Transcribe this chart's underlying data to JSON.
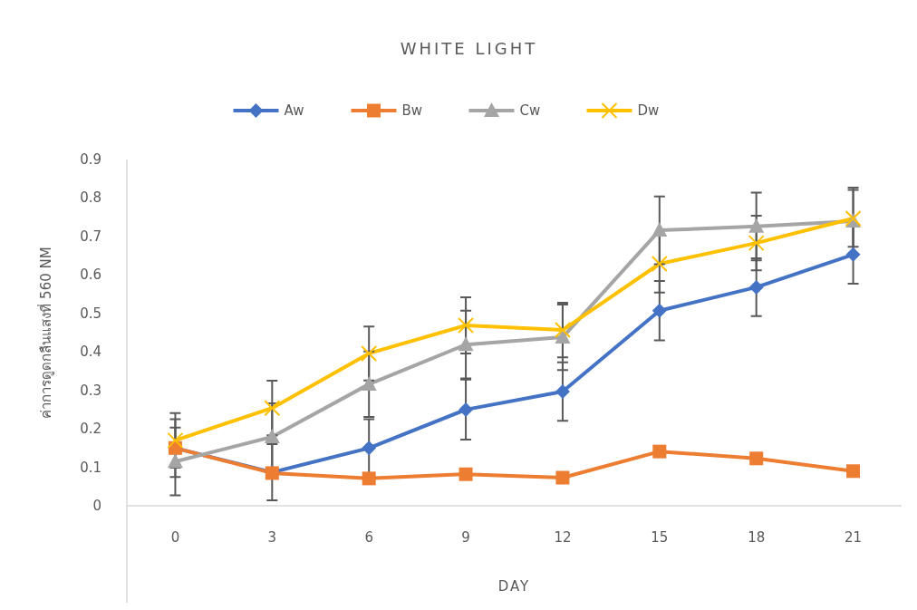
{
  "chart_data": {
    "type": "line",
    "title": "WHITE LIGHT",
    "xlabel": "DAY",
    "ylabel": "ค่าการดูดกลืนแสงที่ 560 NM",
    "categories": [
      "0",
      "3",
      "6",
      "9",
      "12",
      "15",
      "18",
      "21"
    ],
    "ylim": [
      0,
      0.9
    ],
    "yticks": [
      {
        "value": 0,
        "label": "0"
      },
      0.1,
      0.2,
      0.3,
      0.4,
      0.5,
      0.6,
      0.7,
      0.8,
      0.9
    ],
    "grid": false,
    "legend": "top",
    "line_style": "solid",
    "series": [
      {
        "name": "Aw",
        "color": "#4472c4",
        "marker": "diamond",
        "values": [
          0.15,
          0.087,
          0.15,
          0.25,
          0.297,
          0.507,
          0.568,
          0.653
        ],
        "errors": [
          0.075,
          0.073,
          0.075,
          0.078,
          0.076,
          0.077,
          0.075,
          0.076
        ]
      },
      {
        "name": "Bw",
        "color": "#ed7d31",
        "marker": "square",
        "values": [
          0.15,
          0.085,
          0.071,
          0.082,
          0.073,
          0.141,
          0.123,
          0.09
        ]
      },
      {
        "name": "Cw",
        "color": "#a5a5a5",
        "marker": "triangle",
        "values": [
          0.115,
          0.179,
          0.316,
          0.419,
          0.438,
          0.716,
          0.726,
          0.74
        ],
        "errors": [
          0.088,
          0.087,
          0.085,
          0.088,
          0.085,
          0.088,
          0.088,
          0.087
        ]
      },
      {
        "name": "Dw",
        "color": "#ffc000",
        "marker": "cross",
        "values": [
          0.17,
          0.254,
          0.396,
          0.469,
          0.457,
          0.629,
          0.683,
          0.747
        ],
        "errors": [
          0.071,
          0.071,
          0.07,
          0.073,
          0.071,
          0.075,
          0.071,
          0.074
        ]
      }
    ]
  }
}
